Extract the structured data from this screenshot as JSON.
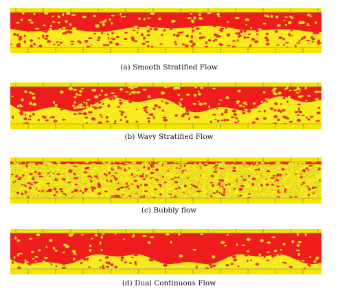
{
  "figure": {
    "panels": [
      {
        "id": "a",
        "caption": "(a) Smooth Stratified Flow",
        "regime": "smooth-stratified"
      },
      {
        "id": "b",
        "caption": "(b) Wavy Stratified Flow",
        "regime": "wavy-stratified"
      },
      {
        "id": "c",
        "caption": "(c) Bubbly flow",
        "regime": "bubbly"
      },
      {
        "id": "d",
        "caption": "(d) Dual Continuous Flow",
        "regime": "dual-continuous"
      }
    ],
    "colors": {
      "phase_red": "#ee1c1c",
      "phase_yellow": "#f7ea1d",
      "wall": "#f5e400",
      "droplet_edge": "#b9ad3a"
    }
  }
}
